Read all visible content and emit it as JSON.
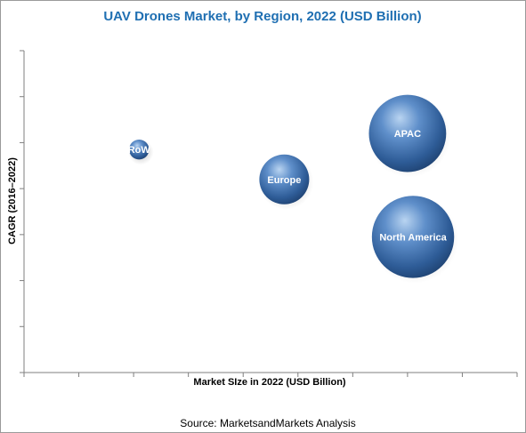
{
  "chart_data": {
    "type": "scatter",
    "title": "UAV Drones Market, by Region, 2022 (USD Billion)",
    "xlabel": "Market SIze in 2022 (USD Billion)",
    "ylabel": "CAGR (2016–2022)",
    "grid": false,
    "x_ticks": 9,
    "y_ticks": 7,
    "xlim": [
      0,
      9
    ],
    "ylim": [
      0,
      7
    ],
    "series": [
      {
        "label": "RoW",
        "x": 2.1,
        "y": 4.85,
        "size": 0.4
      },
      {
        "label": "Europe",
        "x": 4.75,
        "y": 4.2,
        "size": 1.0
      },
      {
        "label": "APAC",
        "x": 7.0,
        "y": 5.2,
        "size": 1.55
      },
      {
        "label": "North America",
        "x": 7.1,
        "y": 2.95,
        "size": 1.65
      }
    ],
    "bubble_color": "#3f72b1"
  },
  "source": "Source:  MarketsandMarkets Analysis"
}
